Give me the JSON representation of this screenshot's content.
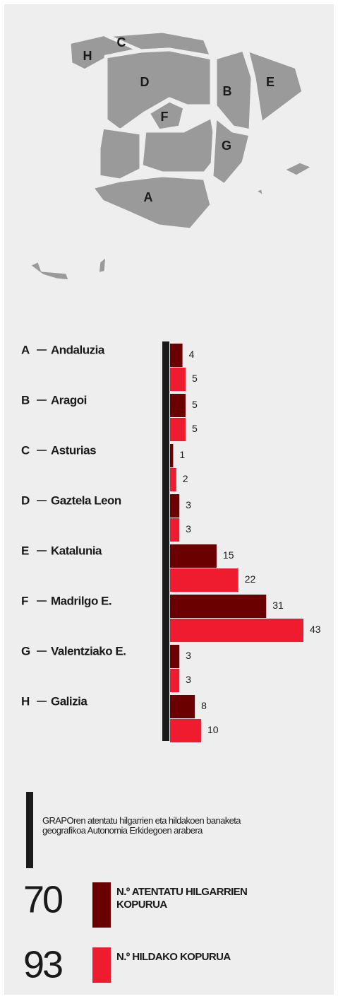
{
  "chart_data": {
    "type": "bar",
    "letters": [
      "A",
      "B",
      "C",
      "D",
      "E",
      "F",
      "G",
      "H"
    ],
    "categories": [
      "Andaluzia",
      "Aragoi",
      "Asturias",
      "Gaztela Leon",
      "Katalunia",
      "Madrilgo E.",
      "Valentziako E.",
      "Galizia"
    ],
    "series": [
      {
        "name": "N.º ATENTATU HILGARRIEN KOPURUA",
        "color": "#6b0000",
        "values": [
          4,
          5,
          1,
          3,
          15,
          31,
          3,
          8
        ],
        "total": 70
      },
      {
        "name": "N.º HILDAKO KOPURUA",
        "color": "#ee1c2e",
        "values": [
          5,
          5,
          2,
          3,
          22,
          43,
          3,
          10
        ],
        "total": 93
      }
    ],
    "xlim": [
      0,
      43
    ],
    "note": "GRAPOren atentatu hilgarrien eta hildakoen banaketa geografikoa Autonomia Erkidegoen arabera"
  }
}
